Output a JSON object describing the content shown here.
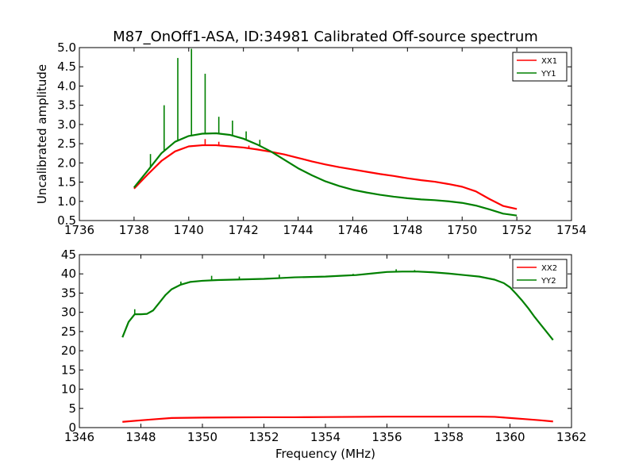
{
  "chart_data": {
    "type": "line",
    "title": "M87_OnOff1-ASA, ID:34981 Calibrated Off-source spectrum",
    "colors": {
      "XX": "#ff0000",
      "YY": "#008000"
    },
    "subplots": [
      {
        "id": "top",
        "xlabel": "",
        "ylabel": "Uncalibrated amplitude",
        "xlim": [
          1736,
          1754
        ],
        "ylim": [
          0.5,
          5.0
        ],
        "x_ticks": [
          "1736",
          "1738",
          "1740",
          "1742",
          "1744",
          "1746",
          "1748",
          "1750",
          "1752",
          "1754"
        ],
        "y_ticks": [
          "0.5",
          "1.0",
          "1.5",
          "2.0",
          "2.5",
          "3.0",
          "3.5",
          "4.0",
          "4.5",
          "5.0"
        ],
        "legend_position": "top-right",
        "series": [
          {
            "name": "XX1",
            "color": "#ff0000",
            "x": [
              1738.0,
              1738.5,
              1739.0,
              1739.5,
              1740.0,
              1740.5,
              1741.0,
              1741.5,
              1742.0,
              1742.5,
              1743.0,
              1743.5,
              1744.0,
              1744.5,
              1745.0,
              1745.5,
              1746.0,
              1746.5,
              1747.0,
              1747.5,
              1748.0,
              1748.5,
              1749.0,
              1749.5,
              1750.0,
              1750.5,
              1751.0,
              1751.5,
              1752.0
            ],
            "y": [
              1.33,
              1.7,
              2.05,
              2.3,
              2.43,
              2.46,
              2.46,
              2.43,
              2.4,
              2.35,
              2.29,
              2.22,
              2.13,
              2.04,
              1.96,
              1.89,
              1.83,
              1.77,
              1.71,
              1.66,
              1.6,
              1.55,
              1.51,
              1.45,
              1.38,
              1.26,
              1.06,
              0.88,
              0.8
            ],
            "spikes": [
              {
                "x": 1740.6,
                "y": 2.62
              },
              {
                "x": 1741.1,
                "y": 2.55
              },
              {
                "x": 1742.2,
                "y": 2.45
              }
            ]
          },
          {
            "name": "YY1",
            "color": "#008000",
            "x": [
              1738.0,
              1738.5,
              1739.0,
              1739.5,
              1740.0,
              1740.5,
              1741.0,
              1741.5,
              1742.0,
              1742.5,
              1743.0,
              1743.5,
              1744.0,
              1744.5,
              1745.0,
              1745.5,
              1746.0,
              1746.5,
              1747.0,
              1747.5,
              1748.0,
              1748.5,
              1749.0,
              1749.5,
              1750.0,
              1750.5,
              1751.0,
              1751.5,
              1752.0
            ],
            "y": [
              1.36,
              1.8,
              2.25,
              2.55,
              2.7,
              2.76,
              2.77,
              2.73,
              2.63,
              2.48,
              2.3,
              2.08,
              1.86,
              1.68,
              1.52,
              1.4,
              1.3,
              1.23,
              1.17,
              1.12,
              1.08,
              1.05,
              1.03,
              1.0,
              0.96,
              0.89,
              0.79,
              0.68,
              0.63
            ],
            "spikes": [
              {
                "x": 1738.6,
                "y": 2.23
              },
              {
                "x": 1739.1,
                "y": 3.5
              },
              {
                "x": 1739.6,
                "y": 4.73
              },
              {
                "x": 1740.1,
                "y": 4.97
              },
              {
                "x": 1740.6,
                "y": 4.32
              },
              {
                "x": 1741.1,
                "y": 3.2
              },
              {
                "x": 1741.6,
                "y": 3.1
              },
              {
                "x": 1742.1,
                "y": 2.82
              },
              {
                "x": 1742.6,
                "y": 2.6
              }
            ]
          }
        ]
      },
      {
        "id": "bottom",
        "xlabel": "Frequency (MHz)",
        "ylabel": "",
        "xlim": [
          1346,
          1362
        ],
        "ylim": [
          0,
          45
        ],
        "x_ticks": [
          "1346",
          "1348",
          "1350",
          "1352",
          "1354",
          "1356",
          "1358",
          "1360",
          "1362"
        ],
        "y_ticks": [
          "0",
          "5",
          "10",
          "15",
          "20",
          "25",
          "30",
          "35",
          "40",
          "45"
        ],
        "legend_position": "top-right",
        "series": [
          {
            "name": "XX2",
            "color": "#ff0000",
            "x": [
              1347.4,
              1348.0,
              1348.5,
              1349.0,
              1350.0,
              1351.0,
              1352.0,
              1353.0,
              1354.0,
              1355.0,
              1356.0,
              1357.0,
              1358.0,
              1359.0,
              1359.5,
              1360.0,
              1360.5,
              1361.0,
              1361.4
            ],
            "y": [
              1.5,
              1.9,
              2.2,
              2.5,
              2.6,
              2.65,
              2.7,
              2.7,
              2.75,
              2.8,
              2.85,
              2.85,
              2.85,
              2.85,
              2.8,
              2.5,
              2.2,
              1.9,
              1.6
            ],
            "spikes": []
          },
          {
            "name": "YY2",
            "color": "#008000",
            "x": [
              1347.4,
              1347.6,
              1347.8,
              1348.0,
              1348.2,
              1348.4,
              1348.6,
              1348.8,
              1349.0,
              1349.3,
              1349.6,
              1350.0,
              1350.5,
              1351.0,
              1351.5,
              1352.0,
              1352.5,
              1353.0,
              1353.5,
              1354.0,
              1354.5,
              1355.0,
              1355.5,
              1356.0,
              1356.5,
              1357.0,
              1357.5,
              1358.0,
              1358.5,
              1359.0,
              1359.5,
              1359.8,
              1360.0,
              1360.2,
              1360.4,
              1360.6,
              1360.8,
              1361.0,
              1361.2,
              1361.4
            ],
            "y": [
              23.5,
              27.5,
              29.5,
              29.5,
              29.6,
              30.5,
              32.5,
              34.5,
              36.0,
              37.2,
              37.9,
              38.2,
              38.4,
              38.5,
              38.6,
              38.7,
              38.9,
              39.1,
              39.2,
              39.3,
              39.5,
              39.7,
              40.1,
              40.5,
              40.6,
              40.6,
              40.4,
              40.1,
              39.7,
              39.3,
              38.5,
              37.6,
              36.5,
              34.8,
              33.0,
              31.0,
              28.8,
              26.8,
              24.8,
              22.8
            ],
            "spikes": [
              {
                "x": 1347.8,
                "y": 30.8
              },
              {
                "x": 1348.4,
                "y": 30.5
              },
              {
                "x": 1349.3,
                "y": 38.0
              },
              {
                "x": 1350.3,
                "y": 39.5
              },
              {
                "x": 1351.2,
                "y": 39.3
              },
              {
                "x": 1352.5,
                "y": 39.8
              },
              {
                "x": 1354.9,
                "y": 40.0
              },
              {
                "x": 1356.3,
                "y": 41.2
              },
              {
                "x": 1356.9,
                "y": 41.0
              }
            ]
          }
        ]
      }
    ]
  }
}
